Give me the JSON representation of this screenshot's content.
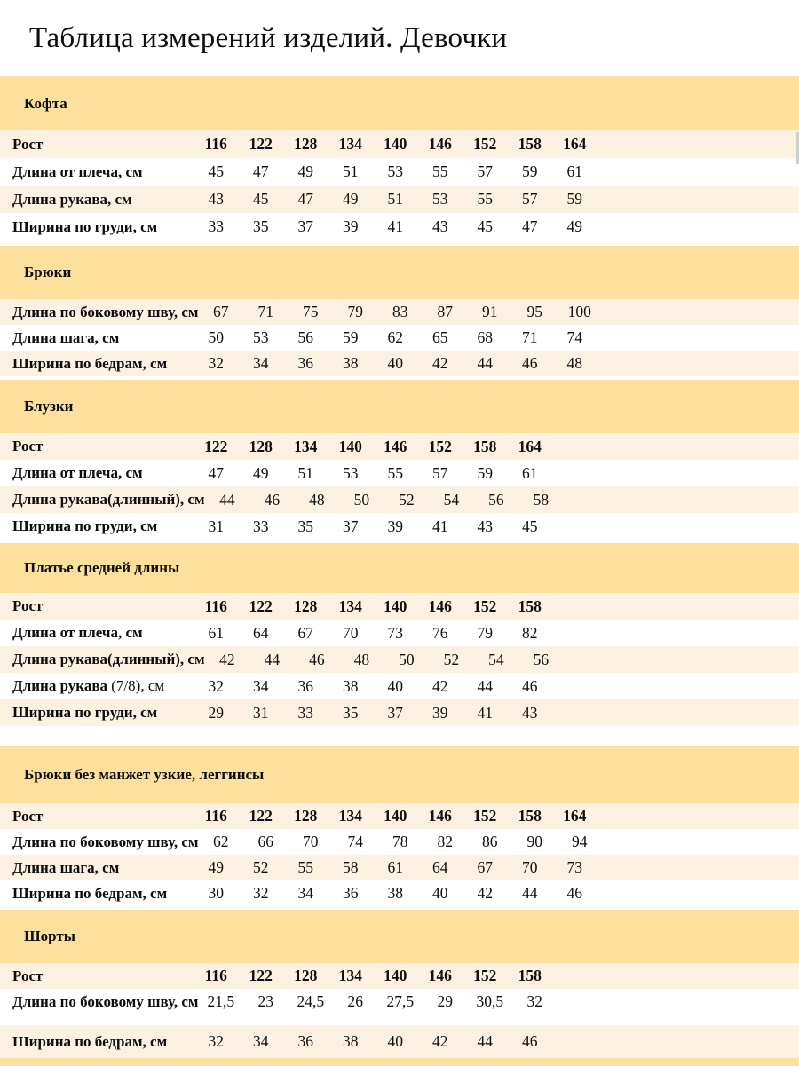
{
  "title": "Таблица измерений изделий. Девочки",
  "colors": {
    "band": "#FCE09C",
    "stripe": "#FDF2E2",
    "page": "#FFFFFF",
    "text": "#0E0E0E"
  },
  "sections": [
    {
      "name": "Кофта",
      "rows": [
        {
          "label": "Рост",
          "emphasis": true,
          "values": [
            "116",
            "122",
            "128",
            "134",
            "140",
            "146",
            "152",
            "158",
            "164"
          ]
        },
        {
          "label": "Длина от плеча, см",
          "values": [
            "45",
            "47",
            "49",
            "51",
            "53",
            "55",
            "57",
            "59",
            "61"
          ]
        },
        {
          "label": "Длина рукава, см",
          "values": [
            "43",
            "45",
            "47",
            "49",
            "51",
            "53",
            "55",
            "57",
            "59"
          ]
        },
        {
          "label": "Ширина по груди, см",
          "values": [
            "33",
            "35",
            "37",
            "39",
            "41",
            "43",
            "45",
            "47",
            "49"
          ]
        }
      ]
    },
    {
      "name": "Брюки",
      "rows": [
        {
          "label": "Длина по боковому шву, см",
          "values": [
            "67",
            "71",
            "75",
            "79",
            "83",
            "87",
            "91",
            "95",
            "100"
          ]
        },
        {
          "label": "Длина шага, см",
          "values": [
            "50",
            "53",
            "56",
            "59",
            "62",
            "65",
            "68",
            "71",
            "74"
          ]
        },
        {
          "label": "Ширина по бедрам, см",
          "values": [
            "32",
            "34",
            "36",
            "38",
            "40",
            "42",
            "44",
            "46",
            "48"
          ]
        }
      ]
    },
    {
      "name": "Блузки",
      "rows": [
        {
          "label": "Рост",
          "emphasis": true,
          "values": [
            "122",
            "128",
            "134",
            "140",
            "146",
            "152",
            "158",
            "164"
          ]
        },
        {
          "label": "Длина от плеча, см",
          "values": [
            "47",
            "49",
            "51",
            "53",
            "55",
            "57",
            "59",
            "61"
          ]
        },
        {
          "label": "Длина рукава(длинный), см",
          "values": [
            "44",
            "46",
            "48",
            "50",
            "52",
            "54",
            "56",
            "58"
          ]
        },
        {
          "label": "Ширина по груди, см",
          "values": [
            "31",
            "33",
            "35",
            "37",
            "39",
            "41",
            "43",
            "45"
          ]
        }
      ]
    },
    {
      "name": "Платье средней длины",
      "rows": [
        {
          "label": "Рост",
          "emphasis": true,
          "values": [
            "116",
            "122",
            "128",
            "134",
            "140",
            "146",
            "152",
            "158"
          ]
        },
        {
          "label": "Длина от плеча, см",
          "values": [
            "61",
            "64",
            "67",
            "70",
            "73",
            "76",
            "79",
            "82"
          ]
        },
        {
          "label": "Длина рукава(длинный), см",
          "values": [
            "42",
            "44",
            "46",
            "48",
            "50",
            "52",
            "54",
            "56"
          ]
        },
        {
          "label": "Длина рукава",
          "label_suffix": " (7/8), см",
          "values": [
            "32",
            "34",
            "36",
            "38",
            "40",
            "42",
            "44",
            "46"
          ]
        },
        {
          "label": "Ширина по груди, см",
          "values": [
            "29",
            "31",
            "33",
            "35",
            "37",
            "39",
            "41",
            "43"
          ]
        }
      ]
    },
    {
      "name": "Брюки без манжет узкие, леггинсы",
      "rows": [
        {
          "label": "Рост",
          "emphasis": true,
          "values": [
            "116",
            "122",
            "128",
            "134",
            "140",
            "146",
            "152",
            "158",
            "164"
          ]
        },
        {
          "label": "Длина по боковому шву, см",
          "values": [
            "62",
            "66",
            "70",
            "74",
            "78",
            "82",
            "86",
            "90",
            "94"
          ]
        },
        {
          "label": "Длина шага, см",
          "values": [
            "49",
            "52",
            "55",
            "58",
            "61",
            "64",
            "67",
            "70",
            "73"
          ]
        },
        {
          "label": "Ширина по бедрам, см",
          "values": [
            "30",
            "32",
            "34",
            "36",
            "38",
            "40",
            "42",
            "44",
            "46"
          ]
        }
      ]
    },
    {
      "name": "Шорты",
      "rows": [
        {
          "label": "Рост",
          "emphasis": true,
          "values": [
            "116",
            "122",
            "128",
            "134",
            "140",
            "146",
            "152",
            "158"
          ]
        },
        {
          "label": "Длина по боковому шву, см",
          "values": [
            "21,5",
            "23",
            "24,5",
            "26",
            "27,5",
            "29",
            "30,5",
            "32"
          ]
        },
        {
          "label": "Ширина по бедрам, см",
          "values": [
            "32",
            "34",
            "36",
            "38",
            "40",
            "42",
            "44",
            "46"
          ]
        }
      ]
    }
  ]
}
